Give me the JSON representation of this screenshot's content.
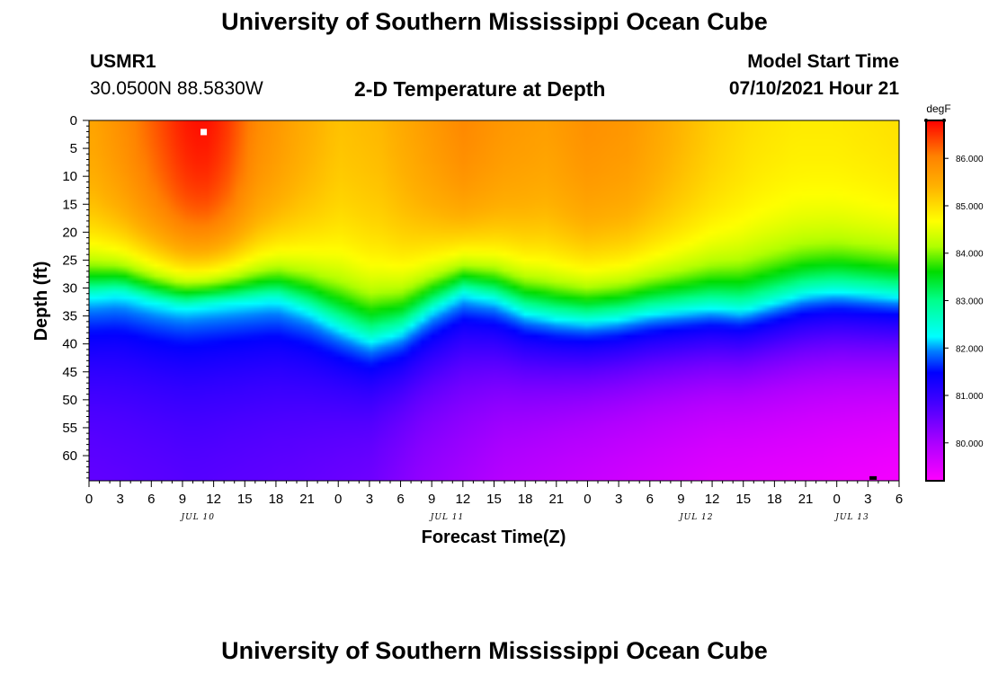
{
  "header": {
    "title_top": "University of Southern Mississippi Ocean Cube",
    "station_id": "USMR1",
    "coords": "30.0500N  88.5830W",
    "plot_title": "2-D Temperature at Depth",
    "model_start_label": "Model Start Time",
    "model_start_value": "07/10/2021 Hour 21",
    "title_bottom": "University of Southern Mississippi Ocean Cube"
  },
  "chart_data": {
    "type": "heatmap",
    "title": "2-D Temperature at Depth",
    "xlabel": "Forecast Time(Z)",
    "ylabel": "Depth (ft)",
    "x_hours_range": [
      0,
      78
    ],
    "x_tick_labels": [
      "0",
      "3",
      "6",
      "9",
      "12",
      "15",
      "18",
      "21",
      "0",
      "3",
      "6",
      "9",
      "12",
      "15",
      "18",
      "21",
      "0",
      "3",
      "6",
      "9",
      "12",
      "15",
      "18",
      "21",
      "0",
      "3",
      "6"
    ],
    "date_labels": [
      {
        "text": "JUL 10",
        "hour": 10.5
      },
      {
        "text": "JUL 11",
        "hour": 34.5
      },
      {
        "text": "JUL 12",
        "hour": 58.5
      },
      {
        "text": "JUL 13",
        "hour": 73.5
      }
    ],
    "ylim": [
      0,
      64.5
    ],
    "y_ticks": [
      0,
      5,
      10,
      15,
      20,
      25,
      30,
      35,
      40,
      45,
      50,
      55,
      60
    ],
    "colorbar": {
      "unit": "degF",
      "min": 79.2,
      "max": 86.8,
      "tick_values": [
        80,
        81,
        82,
        83,
        84,
        85,
        86
      ],
      "tick_labels": [
        "80.000",
        "81.000",
        "82.000",
        "83.000",
        "84.000",
        "85.000",
        "86.000"
      ]
    },
    "thermocline": {
      "hours": [
        0,
        3,
        6,
        9,
        12,
        15,
        18,
        21,
        24,
        27,
        30,
        33,
        36,
        39,
        42,
        45,
        48,
        51,
        54,
        57,
        60,
        63,
        66,
        69,
        72,
        75,
        78
      ],
      "depth_ft": [
        31.5,
        31,
        32.5,
        33.5,
        33,
        32.5,
        32,
        34,
        37,
        39.5,
        38,
        34,
        31,
        32,
        34.5,
        35.5,
        36,
        35.5,
        34.5,
        34,
        33.5,
        34,
        32.5,
        31,
        30.5,
        31,
        31.5
      ]
    },
    "surface_temp_degF": {
      "hours": [
        0,
        3,
        6,
        9,
        11,
        13,
        16,
        20,
        24,
        28,
        32,
        36,
        40,
        44,
        48,
        52,
        56,
        60,
        64,
        68,
        72,
        78
      ],
      "values": [
        85.6,
        85.9,
        86.3,
        86.7,
        86.8,
        86.6,
        86.0,
        85.6,
        85.3,
        85.4,
        85.7,
        86.0,
        85.8,
        85.7,
        85.9,
        85.8,
        85.5,
        85.2,
        85.0,
        84.9,
        84.9,
        85.0
      ]
    },
    "bottom_temp_degF": {
      "hours": [
        0,
        10,
        20,
        27,
        32,
        40,
        50,
        60,
        70,
        78
      ],
      "values": [
        80.6,
        80.7,
        80.6,
        80.5,
        80.2,
        79.9,
        79.7,
        79.5,
        79.4,
        79.3
      ]
    },
    "markers": [
      {
        "kind": "max",
        "hour": 11,
        "depth_ft": 2
      },
      {
        "kind": "min",
        "hour": 75.5,
        "depth_ft": 64
      }
    ]
  }
}
